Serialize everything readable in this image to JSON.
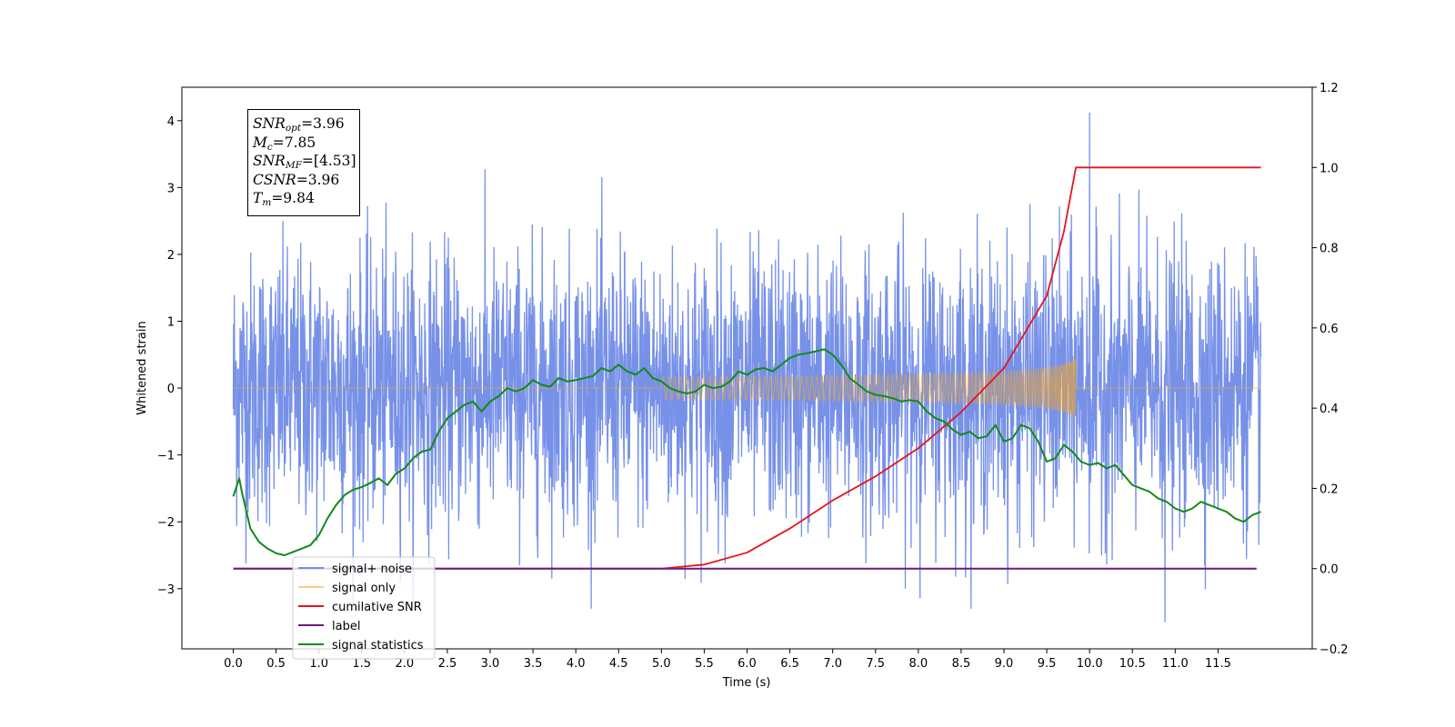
{
  "chart_data": {
    "type": "line",
    "xlabel": "Time (s)",
    "ylabel": "Whitened strain",
    "xlim": [
      -0.6,
      12.6
    ],
    "ylim": [
      -3.9,
      4.5
    ],
    "y2lim": [
      -0.2,
      1.2
    ],
    "x_ticks": [
      "0.0",
      "0.5",
      "1.0",
      "1.5",
      "2.0",
      "2.5",
      "3.0",
      "3.5",
      "4.0",
      "4.5",
      "5.0",
      "5.5",
      "6.0",
      "6.5",
      "7.0",
      "7.5",
      "8.0",
      "8.5",
      "9.0",
      "9.5",
      "10.0",
      "10.5",
      "11.0",
      "11.5"
    ],
    "y_ticks": [
      "−3",
      "−2",
      "−1",
      "0",
      "1",
      "2",
      "3",
      "4"
    ],
    "y2_ticks": [
      "−0.2",
      "0.0",
      "0.2",
      "0.4",
      "0.6",
      "0.8",
      "1.0",
      "1.2"
    ],
    "legend_position": "lower-left",
    "annotation": {
      "lines": [
        {
          "sym": "SNR",
          "sub": "opt",
          "value": "=3.96"
        },
        {
          "sym": "M",
          "sub": "c",
          "value": "=7.85"
        },
        {
          "sym": "SNR",
          "sub": "MF",
          "value": "=[4.53]"
        },
        {
          "sym": "CSNR",
          "sub": "",
          "value": "=3.96"
        },
        {
          "sym": "T",
          "sub": "m",
          "value": "=9.84"
        }
      ]
    },
    "series": [
      {
        "name": "signal+ noise",
        "color": "#6b88e6",
        "axis": "left",
        "description_values": {
          "x_range": [
            0.0,
            12.0
          ],
          "std": 1.0,
          "max": 4.12,
          "min": -3.5
        }
      },
      {
        "name": "signal only",
        "color": "#f5a623",
        "axis": "left",
        "chirp": {
          "start": 5.0,
          "merger": 9.84,
          "peak_amplitude": 0.47,
          "end": 12.0
        }
      },
      {
        "name": "cumilative SNR",
        "color": "#e8141b",
        "axis": "right",
        "x": [
          0.0,
          5.0,
          5.5,
          6.0,
          6.5,
          7.0,
          7.5,
          8.0,
          8.5,
          9.0,
          9.5,
          9.7,
          9.84,
          10.0,
          12.0
        ],
        "y": [
          0.0,
          0.0,
          0.01,
          0.04,
          0.1,
          0.17,
          0.23,
          0.3,
          0.39,
          0.5,
          0.68,
          0.84,
          1.0,
          1.0,
          1.0
        ]
      },
      {
        "name": "label",
        "color": "#6a1b7a",
        "axis": "right",
        "x": [
          0.0,
          11.95
        ],
        "y": [
          0.0,
          0.0
        ]
      },
      {
        "name": "signal statistics",
        "color": "#138a18",
        "axis": "left",
        "x": [
          0.0,
          0.07,
          0.1,
          0.2,
          0.3,
          0.4,
          0.5,
          0.6,
          0.7,
          0.8,
          0.9,
          1.0,
          1.1,
          1.2,
          1.3,
          1.4,
          1.5,
          1.6,
          1.7,
          1.8,
          1.9,
          2.0,
          2.1,
          2.2,
          2.3,
          2.4,
          2.5,
          2.6,
          2.7,
          2.8,
          2.9,
          3.0,
          3.1,
          3.2,
          3.3,
          3.4,
          3.5,
          3.6,
          3.7,
          3.8,
          3.9,
          4.0,
          4.1,
          4.2,
          4.3,
          4.4,
          4.5,
          4.6,
          4.7,
          4.8,
          4.9,
          5.0,
          5.1,
          5.2,
          5.3,
          5.4,
          5.5,
          5.6,
          5.7,
          5.8,
          5.9,
          6.0,
          6.1,
          6.2,
          6.3,
          6.4,
          6.5,
          6.6,
          6.7,
          6.8,
          6.9,
          7.0,
          7.1,
          7.2,
          7.3,
          7.4,
          7.5,
          7.6,
          7.7,
          7.8,
          7.9,
          8.0,
          8.1,
          8.2,
          8.3,
          8.4,
          8.5,
          8.6,
          8.7,
          8.8,
          8.9,
          9.0,
          9.1,
          9.2,
          9.3,
          9.4,
          9.5,
          9.6,
          9.7,
          9.8,
          9.9,
          10.0,
          10.1,
          10.2,
          10.3,
          10.4,
          10.5,
          10.6,
          10.7,
          10.8,
          10.9,
          11.0,
          11.1,
          11.2,
          11.3,
          11.4,
          11.5,
          11.6,
          11.7,
          11.8,
          11.9,
          12.0
        ],
        "y": [
          -1.62,
          -1.35,
          -1.55,
          -2.1,
          -2.3,
          -2.4,
          -2.47,
          -2.5,
          -2.45,
          -2.4,
          -2.35,
          -2.2,
          -1.95,
          -1.75,
          -1.6,
          -1.52,
          -1.48,
          -1.42,
          -1.35,
          -1.45,
          -1.28,
          -1.2,
          -1.05,
          -0.95,
          -0.92,
          -0.65,
          -0.45,
          -0.35,
          -0.25,
          -0.2,
          -0.35,
          -0.2,
          -0.12,
          0.0,
          -0.05,
          0.0,
          0.12,
          0.05,
          0.02,
          0.15,
          0.1,
          0.12,
          0.15,
          0.18,
          0.3,
          0.25,
          0.35,
          0.25,
          0.2,
          0.3,
          0.15,
          0.1,
          0.0,
          -0.05,
          -0.08,
          -0.05,
          0.05,
          0.0,
          0.02,
          0.1,
          0.25,
          0.2,
          0.28,
          0.3,
          0.25,
          0.35,
          0.45,
          0.5,
          0.52,
          0.55,
          0.58,
          0.5,
          0.35,
          0.15,
          0.05,
          -0.05,
          -0.1,
          -0.12,
          -0.15,
          -0.2,
          -0.18,
          -0.2,
          -0.35,
          -0.45,
          -0.5,
          -0.62,
          -0.7,
          -0.65,
          -0.75,
          -0.72,
          -0.55,
          -0.8,
          -0.75,
          -0.55,
          -0.6,
          -0.8,
          -1.1,
          -1.05,
          -0.85,
          -0.95,
          -1.1,
          -1.15,
          -1.12,
          -1.2,
          -1.15,
          -1.3,
          -1.45,
          -1.5,
          -1.55,
          -1.65,
          -1.7,
          -1.8,
          -1.85,
          -1.8,
          -1.7,
          -1.75,
          -1.8,
          -1.85,
          -1.95,
          -2.0,
          -1.9,
          -1.85
        ]
      }
    ]
  }
}
